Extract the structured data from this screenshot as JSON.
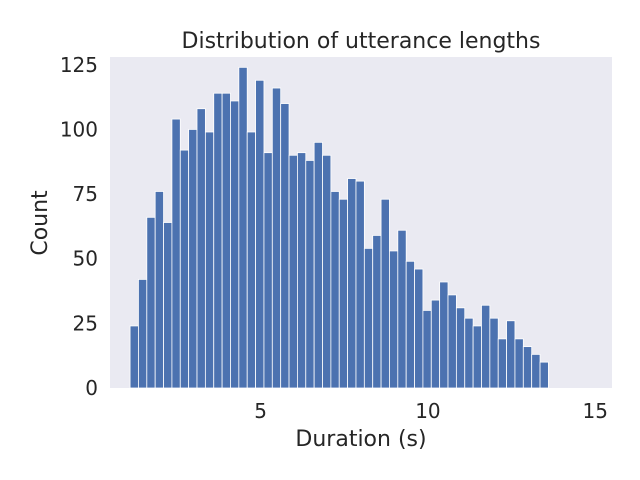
{
  "chart_data": {
    "type": "bar",
    "title": "Distribution of utterance lengths",
    "xlabel": "Duration (s)",
    "ylabel": "Count",
    "xlim": [
      0.5,
      15.5
    ],
    "ylim": [
      0,
      128
    ],
    "xticks": [
      5,
      10,
      15
    ],
    "yticks": [
      0,
      25,
      50,
      75,
      100,
      125
    ],
    "grid": false,
    "bin_start": 1.1,
    "bin_width": 0.25,
    "counts": [
      24,
      42,
      66,
      76,
      64,
      104,
      92,
      100,
      108,
      99,
      114,
      114,
      111,
      124,
      99,
      119,
      91,
      116,
      110,
      90,
      91,
      88,
      95,
      90,
      76,
      73,
      81,
      80,
      54,
      59,
      73,
      53,
      61,
      49,
      46,
      30,
      34,
      41,
      36,
      31,
      27,
      24,
      32,
      27,
      19,
      26,
      19,
      16,
      13,
      10
    ]
  },
  "colors": {
    "plot_background": "#eaeaf2",
    "bar_fill": "#4c72b0",
    "bar_edge": "#ffffff",
    "text": "#262626"
  }
}
